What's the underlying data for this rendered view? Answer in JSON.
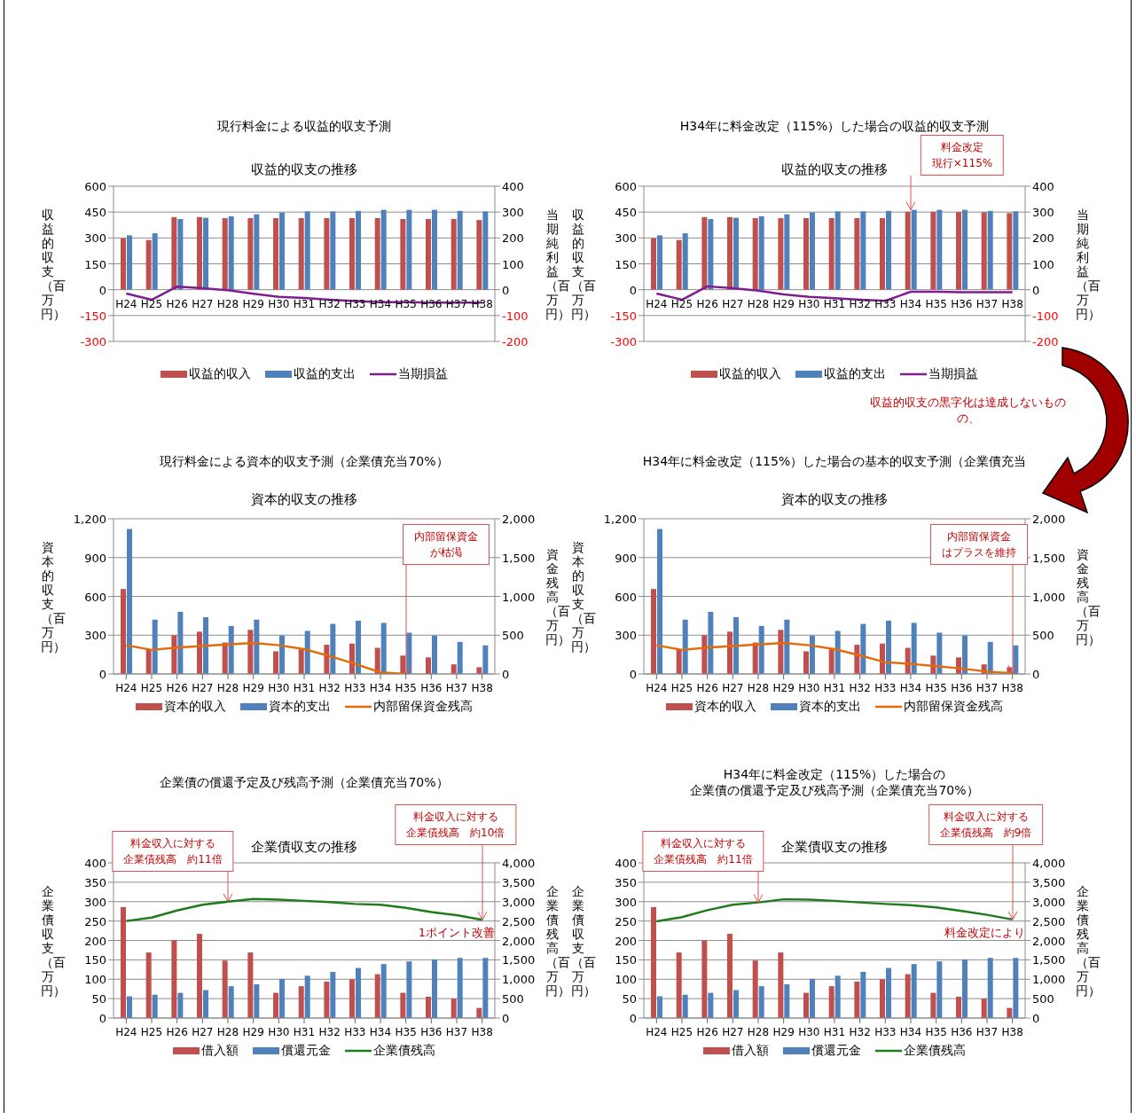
{
  "chart_data": [
    {
      "type": "bar",
      "title": "現行料金による収益的収支予測",
      "subtitle": "収益的収支の推移",
      "ylabel": "収益的収支（百万円）",
      "y2label": "当期純利益（百万円）",
      "categories": [
        "H24",
        "H25",
        "H26",
        "H27",
        "H28",
        "H29",
        "H30",
        "H31",
        "H32",
        "H33",
        "H34",
        "H35",
        "H36",
        "H37",
        "H38"
      ],
      "series": [
        {
          "name": "収益的収入",
          "color": "#c0504d",
          "values": [
            298,
            288,
            421,
            421,
            415,
            415,
            415,
            415,
            415,
            415,
            415,
            410,
            410,
            410,
            404
          ]
        },
        {
          "name": "収益的支出",
          "color": "#4f81bd",
          "values": [
            315,
            327,
            410,
            417,
            426,
            437,
            448,
            454,
            454,
            457,
            463,
            463,
            463,
            457,
            454
          ]
        },
        {
          "name": "当期損益",
          "type": "line",
          "axis": "y2",
          "color": "#7f1f8f",
          "values": [
            -15,
            -39,
            12,
            6,
            -2,
            -16,
            -28,
            -32,
            -39,
            -44,
            -48,
            -48,
            -50,
            -50,
            -50
          ]
        }
      ],
      "ylim": [
        -300,
        600
      ],
      "yticks": [
        -300,
        -150,
        0,
        150,
        300,
        450,
        600
      ],
      "y2lim": [
        -200,
        400
      ],
      "y2ticks": [
        -200,
        -100,
        0,
        100,
        200,
        300,
        400
      ],
      "grid": "y",
      "legend": "bottom"
    },
    {
      "type": "bar",
      "title": "H34年に料金改定（115%）した場合の収益的収支予測",
      "subtitle": "収益的収支の推移",
      "ylabel": "収益的収支（百万円）",
      "y2label": "当期純利益（百万円）",
      "categories": [
        "H24",
        "H25",
        "H26",
        "H27",
        "H28",
        "H29",
        "H30",
        "H31",
        "H32",
        "H33",
        "H34",
        "H35",
        "H36",
        "H37",
        "H38"
      ],
      "series": [
        {
          "name": "収益的収入",
          "color": "#c0504d",
          "values": [
            298,
            288,
            421,
            421,
            415,
            415,
            415,
            415,
            415,
            415,
            452,
            452,
            450,
            449,
            444
          ]
        },
        {
          "name": "収益的支出",
          "color": "#4f81bd",
          "values": [
            315,
            327,
            410,
            417,
            426,
            437,
            448,
            454,
            454,
            457,
            463,
            463,
            463,
            457,
            454
          ]
        },
        {
          "name": "当期損益",
          "type": "line",
          "axis": "y2",
          "color": "#7f1f8f",
          "values": [
            -15,
            -39,
            13,
            6,
            -4,
            -18,
            -28,
            -33,
            -39,
            -43,
            -8,
            -8,
            -10,
            -10,
            -10
          ]
        }
      ],
      "ylim": [
        -300,
        600
      ],
      "yticks": [
        -300,
        -150,
        0,
        150,
        300,
        450,
        600
      ],
      "y2lim": [
        -200,
        400
      ],
      "y2ticks": [
        -200,
        -100,
        0,
        100,
        200,
        300,
        400
      ],
      "grid": "y",
      "legend": "bottom",
      "annotations": [
        "料金改定現行×115%",
        "収益的収支の黒字化は達成しないものの、"
      ]
    },
    {
      "type": "bar",
      "title": "現行料金による資本的収支予測（企業債充当70%）",
      "subtitle": "資本的収支の推移",
      "ylabel": "資本的収支（百万円）",
      "y2label": "資金残高（百万円）",
      "categories": [
        "H24",
        "H25",
        "H26",
        "H27",
        "H28",
        "H29",
        "H30",
        "H31",
        "H32",
        "H33",
        "H34",
        "H35",
        "H36",
        "H37",
        "H38"
      ],
      "series": [
        {
          "name": "資本的収入",
          "color": "#c0504d",
          "values": [
            657,
            191,
            300,
            327,
            243,
            341,
            175,
            191,
            226,
            235,
            202,
            142,
            128,
            74,
            52
          ]
        },
        {
          "name": "資本的支出",
          "color": "#4f81bd",
          "values": [
            1121,
            420,
            480,
            439,
            371,
            420,
            297,
            333,
            387,
            412,
            395,
            319,
            297,
            248,
            221
          ]
        },
        {
          "name": "内部留保資金残高",
          "type": "line",
          "axis": "y2",
          "color": "#e36c09",
          "values": [
            370,
            310,
            340,
            360,
            380,
            400,
            370,
            320,
            230,
            130,
            20,
            0,
            null,
            null,
            null
          ]
        }
      ],
      "ylim": [
        0,
        1200
      ],
      "yticks": [
        0,
        300,
        600,
        900,
        {
          "value": 1200,
          "label": "1,200"
        }
      ],
      "y2lim": [
        0,
        2000
      ],
      "y2ticks": [
        0,
        500,
        {
          "value": 1000,
          "label": "1,000"
        },
        {
          "value": 1500,
          "label": "1,500"
        },
        {
          "value": 2000,
          "label": "2,000"
        }
      ],
      "grid": "y",
      "legend": "bottom",
      "annotations": [
        {
          "text": "内部留保資金が枯渇",
          "x": "H35",
          "y": 0
        }
      ]
    },
    {
      "type": "bar",
      "title": "H34年に料金改定（115%）した場合の基本的収支予測（企業債充当",
      "subtitle": "資本的収支の推移",
      "ylabel": "資本的収支（百万円）",
      "y2label": "資金残高（百万円）",
      "categories": [
        "H24",
        "H25",
        "H26",
        "H27",
        "H28",
        "H29",
        "H30",
        "H31",
        "H32",
        "H33",
        "H34",
        "H35",
        "H36",
        "H37",
        "H38"
      ],
      "series": [
        {
          "name": "資本的収入",
          "color": "#c0504d",
          "values": [
            657,
            191,
            300,
            327,
            243,
            341,
            175,
            191,
            226,
            235,
            202,
            142,
            128,
            74,
            52
          ]
        },
        {
          "name": "資本的支出",
          "color": "#4f81bd",
          "values": [
            1121,
            420,
            480,
            439,
            371,
            420,
            297,
            333,
            387,
            412,
            395,
            319,
            297,
            248,
            221
          ]
        },
        {
          "name": "内部留保資金残高",
          "type": "line",
          "axis": "y2",
          "color": "#e36c09",
          "values": [
            370,
            310,
            340,
            360,
            380,
            400,
            370,
            320,
            240,
            150,
            130,
            100,
            70,
            30,
            10
          ]
        }
      ],
      "ylim": [
        0,
        1200
      ],
      "yticks": [
        0,
        300,
        600,
        900,
        {
          "value": 1200,
          "label": "1,200"
        }
      ],
      "y2lim": [
        0,
        2000
      ],
      "y2ticks": [
        0,
        500,
        {
          "value": 1000,
          "label": "1,000"
        },
        {
          "value": 1500,
          "label": "1,500"
        },
        {
          "value": 2000,
          "label": "2,000"
        }
      ],
      "grid": "y",
      "legend": "bottom",
      "annotations": [
        {
          "text": "内部留保資金はプラスを維持",
          "x": "H38",
          "y": 6
        }
      ]
    },
    {
      "type": "bar",
      "title": "企業債の償還予定及び残高予測（企業債充当70%）",
      "subtitle": "企業債収支の推移",
      "ylabel": "企業債収支（百万円）",
      "y2label": "企業債残高（百万円）",
      "categories": [
        "H24",
        "H25",
        "H26",
        "H27",
        "H28",
        "H29",
        "H30",
        "H31",
        "H32",
        "H33",
        "H34",
        "H35",
        "H36",
        "H37",
        "H38"
      ],
      "series": [
        {
          "name": "借入額",
          "color": "#c0504d",
          "values": [
            286,
            169,
            200,
            217,
            148,
            169,
            65,
            82,
            94,
            100,
            113,
            65,
            55,
            50,
            26
          ]
        },
        {
          "name": "償還元金",
          "color": "#4f81bd",
          "values": [
            56,
            60,
            65,
            72,
            82,
            87,
            101,
            109,
            119,
            129,
            139,
            146,
            151,
            155,
            155
          ]
        },
        {
          "name": "企業債残高",
          "type": "line",
          "axis": "y2",
          "color": "#1e7b1e",
          "values": [
            2500,
            2590,
            2770,
            2920,
            3000,
            3070,
            3050,
            3020,
            2990,
            2940,
            2920,
            2840,
            2730,
            2650,
            2530
          ]
        }
      ],
      "ylim": [
        0,
        400
      ],
      "yticks": [
        0,
        50,
        100,
        150,
        200,
        250,
        300,
        350,
        400
      ],
      "y2lim": [
        0,
        4000
      ],
      "y2ticks": [
        0,
        500,
        {
          "value": 1000,
          "label": "1,000"
        },
        {
          "value": 1500,
          "label": "1,500"
        },
        {
          "value": 2000,
          "label": "2,000"
        },
        {
          "value": 2500,
          "label": "2,500"
        },
        {
          "value": 3000,
          "label": "3,000"
        },
        {
          "value": 3500,
          "label": "3,500"
        },
        {
          "value": 4000,
          "label": "4,000"
        }
      ],
      "grid": "y",
      "legend": "bottom",
      "annotations": [
        {
          "text": "料金収入に対する企業債残高　約11倍",
          "x": "H28",
          "y": 300
        },
        {
          "text": "料金収入に対する企業債残高　約10倍",
          "x": "H38",
          "y": 253
        },
        "1ポイント改善"
      ]
    },
    {
      "type": "bar",
      "title": "H34年に料金改定（115%）した場合の企業債の償還予定及び残高予測（企業債充当70%）",
      "subtitle": "企業債収支の推移",
      "ylabel": "企業債収支（百万円）",
      "y2label": "企業債残高（百万円）",
      "categories": [
        "H24",
        "H25",
        "H26",
        "H27",
        "H28",
        "H29",
        "H30",
        "H31",
        "H32",
        "H33",
        "H34",
        "H35",
        "H36",
        "H37",
        "H38"
      ],
      "series": [
        {
          "name": "借入額",
          "color": "#c0504d",
          "values": [
            286,
            169,
            200,
            217,
            148,
            169,
            65,
            82,
            94,
            100,
            113,
            65,
            55,
            50,
            26
          ]
        },
        {
          "name": "償還元金",
          "color": "#4f81bd",
          "values": [
            56,
            60,
            65,
            72,
            82,
            87,
            101,
            109,
            119,
            129,
            139,
            146,
            151,
            155,
            155
          ]
        },
        {
          "name": "企業債残高",
          "type": "line",
          "axis": "y2",
          "color": "#1e7b1e",
          "values": [
            2490,
            2600,
            2780,
            2920,
            2980,
            3060,
            3050,
            3020,
            2980,
            2940,
            2910,
            2850,
            2760,
            2660,
            2540
          ]
        }
      ],
      "ylim": [
        0,
        400
      ],
      "yticks": [
        0,
        50,
        100,
        150,
        200,
        250,
        300,
        350,
        400
      ],
      "y2lim": [
        0,
        4000
      ],
      "y2ticks": [
        0,
        500,
        {
          "value": 1000,
          "label": "1,000"
        },
        {
          "value": 1500,
          "label": "1,500"
        },
        {
          "value": 2000,
          "label": "2,000"
        },
        {
          "value": 2500,
          "label": "2,500"
        },
        {
          "value": 3000,
          "label": "3,000"
        },
        {
          "value": 3500,
          "label": "3,500"
        },
        {
          "value": 4000,
          "label": "4,000"
        }
      ],
      "grid": "y",
      "legend": "bottom",
      "annotations": [
        {
          "text": "料金収入に対する企業債残高　約11倍",
          "x": "H28",
          "y": 298
        },
        {
          "text": "料金収入に対する企業債残高　約9倍",
          "x": "H38",
          "y": 254
        },
        "料金改定により"
      ]
    }
  ]
}
